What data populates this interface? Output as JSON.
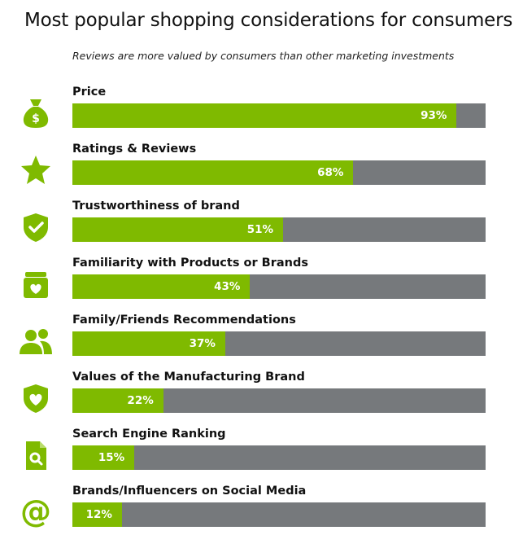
{
  "chart_data": {
    "type": "bar",
    "orientation": "horizontal",
    "title": "Most popular shopping considerations for consumers",
    "subtitle": "Reviews are more valued by consumers than other marketing investments",
    "categories": [
      "Price",
      "Ratings & Reviews",
      "Trustworthiness of brand",
      "Familiarity with Products or Brands",
      "Family/Friends Recommendations",
      "Values of the Manufacturing Brand",
      "Search Engine Ranking",
      "Brands/Influencers on Social Media"
    ],
    "values": [
      93,
      68,
      51,
      43,
      37,
      22,
      15,
      12
    ],
    "value_labels": [
      "93%",
      "68%",
      "51%",
      "43%",
      "37%",
      "22%",
      "15%",
      "12%"
    ],
    "icons": [
      "money-bag-icon",
      "star-icon",
      "shield-check-icon",
      "gift-box-heart-icon",
      "people-icon",
      "shield-heart-icon",
      "document-search-icon",
      "at-sign-icon"
    ],
    "xlim": [
      0,
      100
    ],
    "colors": {
      "fill": "#7fba00",
      "track": "#76797c",
      "icon": "#7fba00",
      "value_text": "#ffffff"
    }
  }
}
